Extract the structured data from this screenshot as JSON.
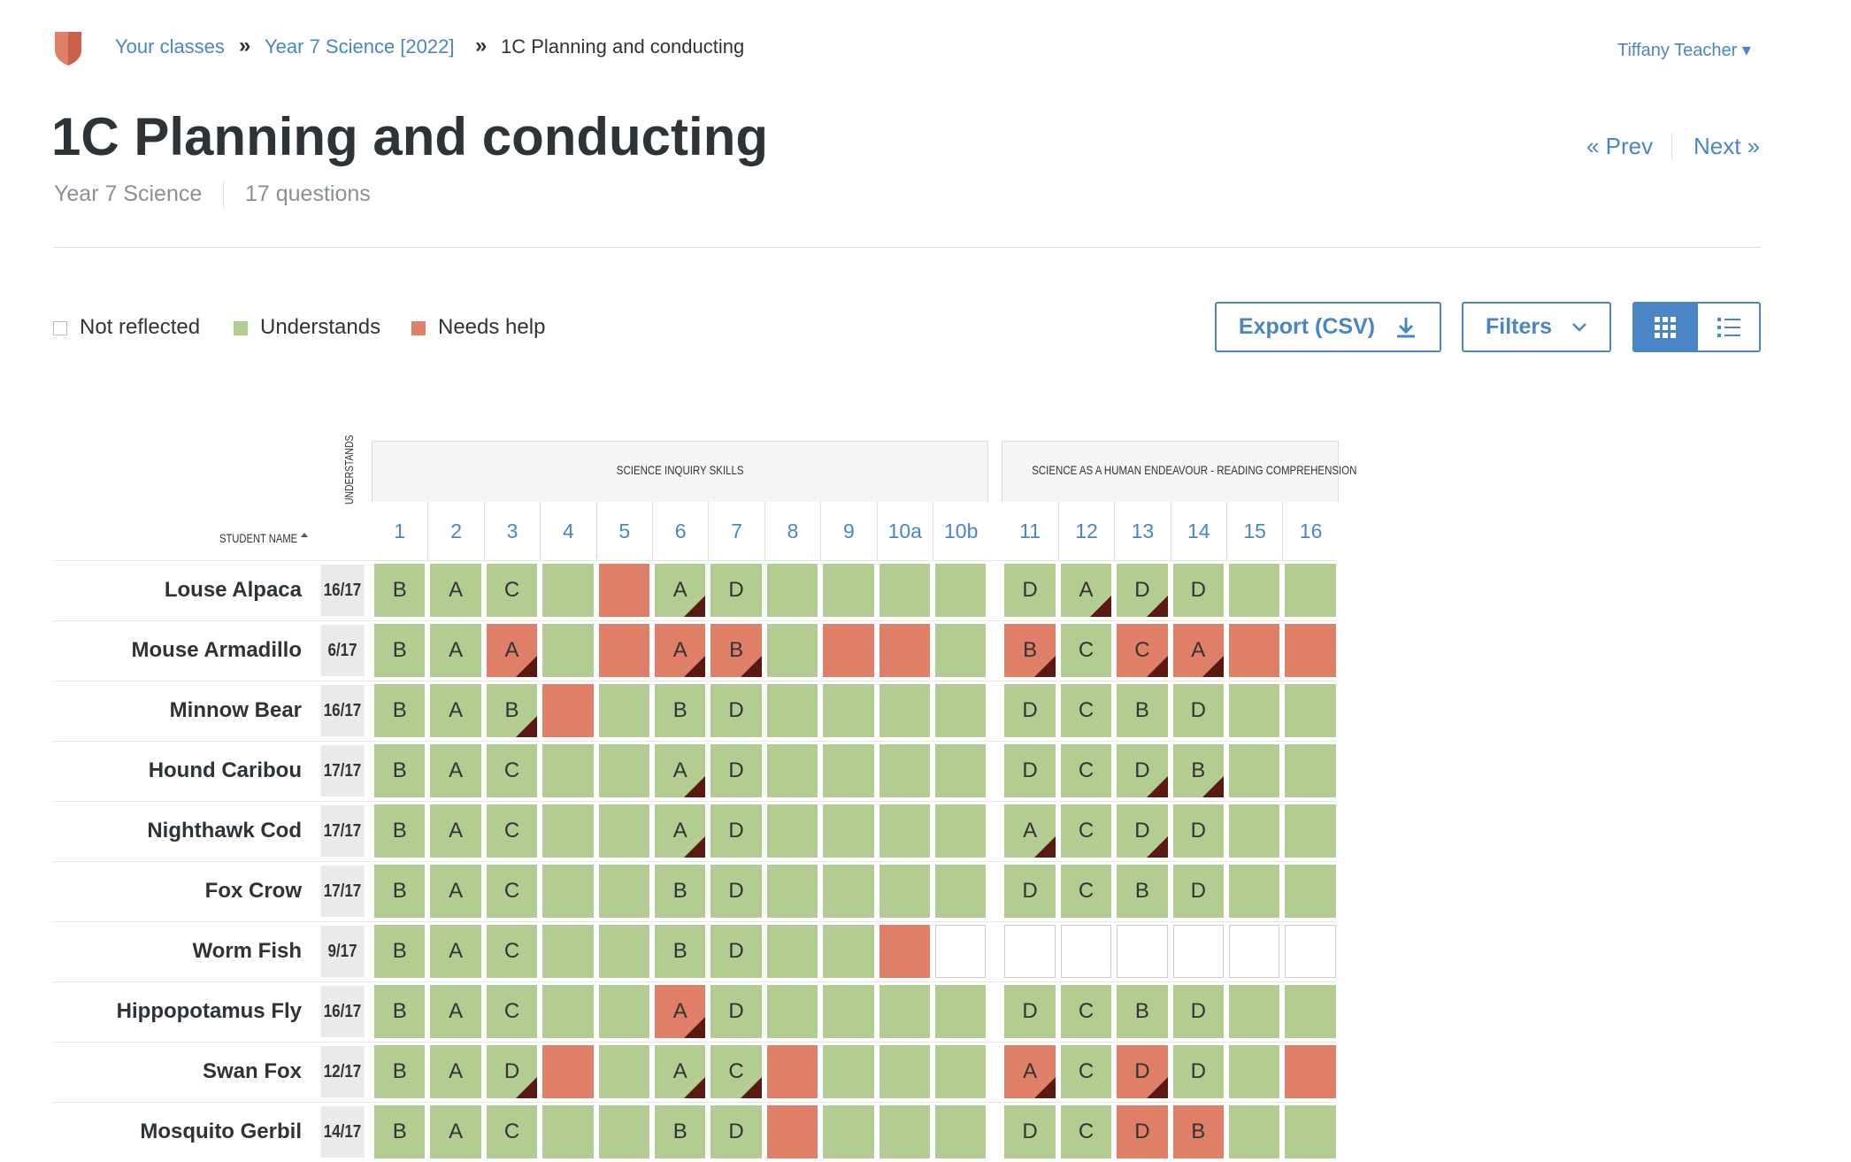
{
  "header": {
    "breadcrumbs": [
      "Your classes",
      "Year 7 Science [2022]",
      "1C Planning and conducting"
    ],
    "separator": "»",
    "user": "Tiffany Teacher"
  },
  "title": "1C Planning and conducting",
  "subtitle": [
    "Year 7 Science",
    "17 questions"
  ],
  "nav": {
    "prev": "« Prev",
    "next": "Next »"
  },
  "legend": [
    {
      "label": "Not reflected",
      "status": "n"
    },
    {
      "label": "Understands",
      "status": "u"
    },
    {
      "label": "Needs help",
      "status": "h"
    }
  ],
  "buttons": {
    "export": "Export (CSV)",
    "filters": "Filters"
  },
  "table": {
    "name_header": "STUDENT NAME",
    "score_header": "UNDERSTANDS",
    "groups": [
      {
        "name": "SCIENCE INQUIRY SKILLS",
        "questions": [
          "1",
          "2",
          "3",
          "4",
          "5",
          "6",
          "7",
          "8",
          "9",
          "10a",
          "10b"
        ]
      },
      {
        "name": "SCIENCE AS A HUMAN ENDEAVOUR - READING COMPREHENSION",
        "questions": [
          "11",
          "12",
          "13",
          "14",
          "15",
          "16"
        ]
      }
    ],
    "rows": [
      {
        "name": "Louse Alpaca",
        "score": "16/17",
        "answers": [
          "B",
          "A",
          "C",
          null,
          null,
          "A",
          "D",
          null,
          null,
          null,
          null,
          "D",
          "A",
          "D",
          "D",
          null,
          null
        ],
        "status": "uuuuhuuuuuuuuuuuu",
        "flags": [
          5,
          12,
          13
        ]
      },
      {
        "name": "Mouse Armadillo",
        "score": "6/17",
        "answers": [
          "B",
          "A",
          "A",
          null,
          null,
          "A",
          "B",
          null,
          null,
          null,
          null,
          "B",
          "C",
          "C",
          "A",
          null,
          null
        ],
        "status": "uuhuhhhuhhuhuhhhh",
        "flags": [
          2,
          5,
          6,
          11,
          13,
          14
        ]
      },
      {
        "name": "Minnow Bear",
        "score": "16/17",
        "answers": [
          "B",
          "A",
          "B",
          null,
          null,
          "B",
          "D",
          null,
          null,
          null,
          null,
          "D",
          "C",
          "B",
          "D",
          null,
          null
        ],
        "status": "uuuhuuuuuuuuuuuuu",
        "flags": [
          2
        ]
      },
      {
        "name": "Hound Caribou",
        "score": "17/17",
        "answers": [
          "B",
          "A",
          "C",
          null,
          null,
          "A",
          "D",
          null,
          null,
          null,
          null,
          "D",
          "C",
          "D",
          "B",
          null,
          null
        ],
        "status": "uuuuuuuuuuuuuuuuu",
        "flags": [
          5,
          13,
          14
        ]
      },
      {
        "name": "Nighthawk Cod",
        "score": "17/17",
        "answers": [
          "B",
          "A",
          "C",
          null,
          null,
          "A",
          "D",
          null,
          null,
          null,
          null,
          "A",
          "C",
          "D",
          "D",
          null,
          null
        ],
        "status": "uuuuuuuuuuuuuuuuu",
        "flags": [
          5,
          11,
          13
        ]
      },
      {
        "name": "Fox Crow",
        "score": "17/17",
        "answers": [
          "B",
          "A",
          "C",
          null,
          null,
          "B",
          "D",
          null,
          null,
          null,
          null,
          "D",
          "C",
          "B",
          "D",
          null,
          null
        ],
        "status": "uuuuuuuuuuuuuuuuu",
        "flags": []
      },
      {
        "name": "Worm Fish",
        "score": "9/17",
        "answers": [
          "B",
          "A",
          "C",
          null,
          null,
          "B",
          "D",
          null,
          null,
          null,
          null,
          null,
          null,
          null,
          null,
          null,
          null
        ],
        "status": "uuuuuuuuuhnnnnnnn",
        "flags": []
      },
      {
        "name": "Hippopotamus Fly",
        "score": "16/17",
        "answers": [
          "B",
          "A",
          "C",
          null,
          null,
          "A",
          "D",
          null,
          null,
          null,
          null,
          "D",
          "C",
          "B",
          "D",
          null,
          null
        ],
        "status": "uuuuuhuuuuuuuuuuu",
        "flags": [
          5
        ]
      },
      {
        "name": "Swan Fox",
        "score": "12/17",
        "answers": [
          "B",
          "A",
          "D",
          null,
          null,
          "A",
          "C",
          null,
          null,
          null,
          null,
          "A",
          "C",
          "D",
          "D",
          null,
          null
        ],
        "status": "uuuhuuuhuuuhuhuuh",
        "flags": [
          2,
          5,
          6,
          11,
          13
        ]
      },
      {
        "name": "Mosquito Gerbil",
        "score": "14/17",
        "answers": [
          "B",
          "A",
          "C",
          null,
          null,
          "B",
          "D",
          null,
          null,
          null,
          null,
          "D",
          "C",
          "D",
          "B",
          null,
          null
        ],
        "status": "uuuuuuuhuuuuuhhuu",
        "flags": []
      }
    ]
  }
}
